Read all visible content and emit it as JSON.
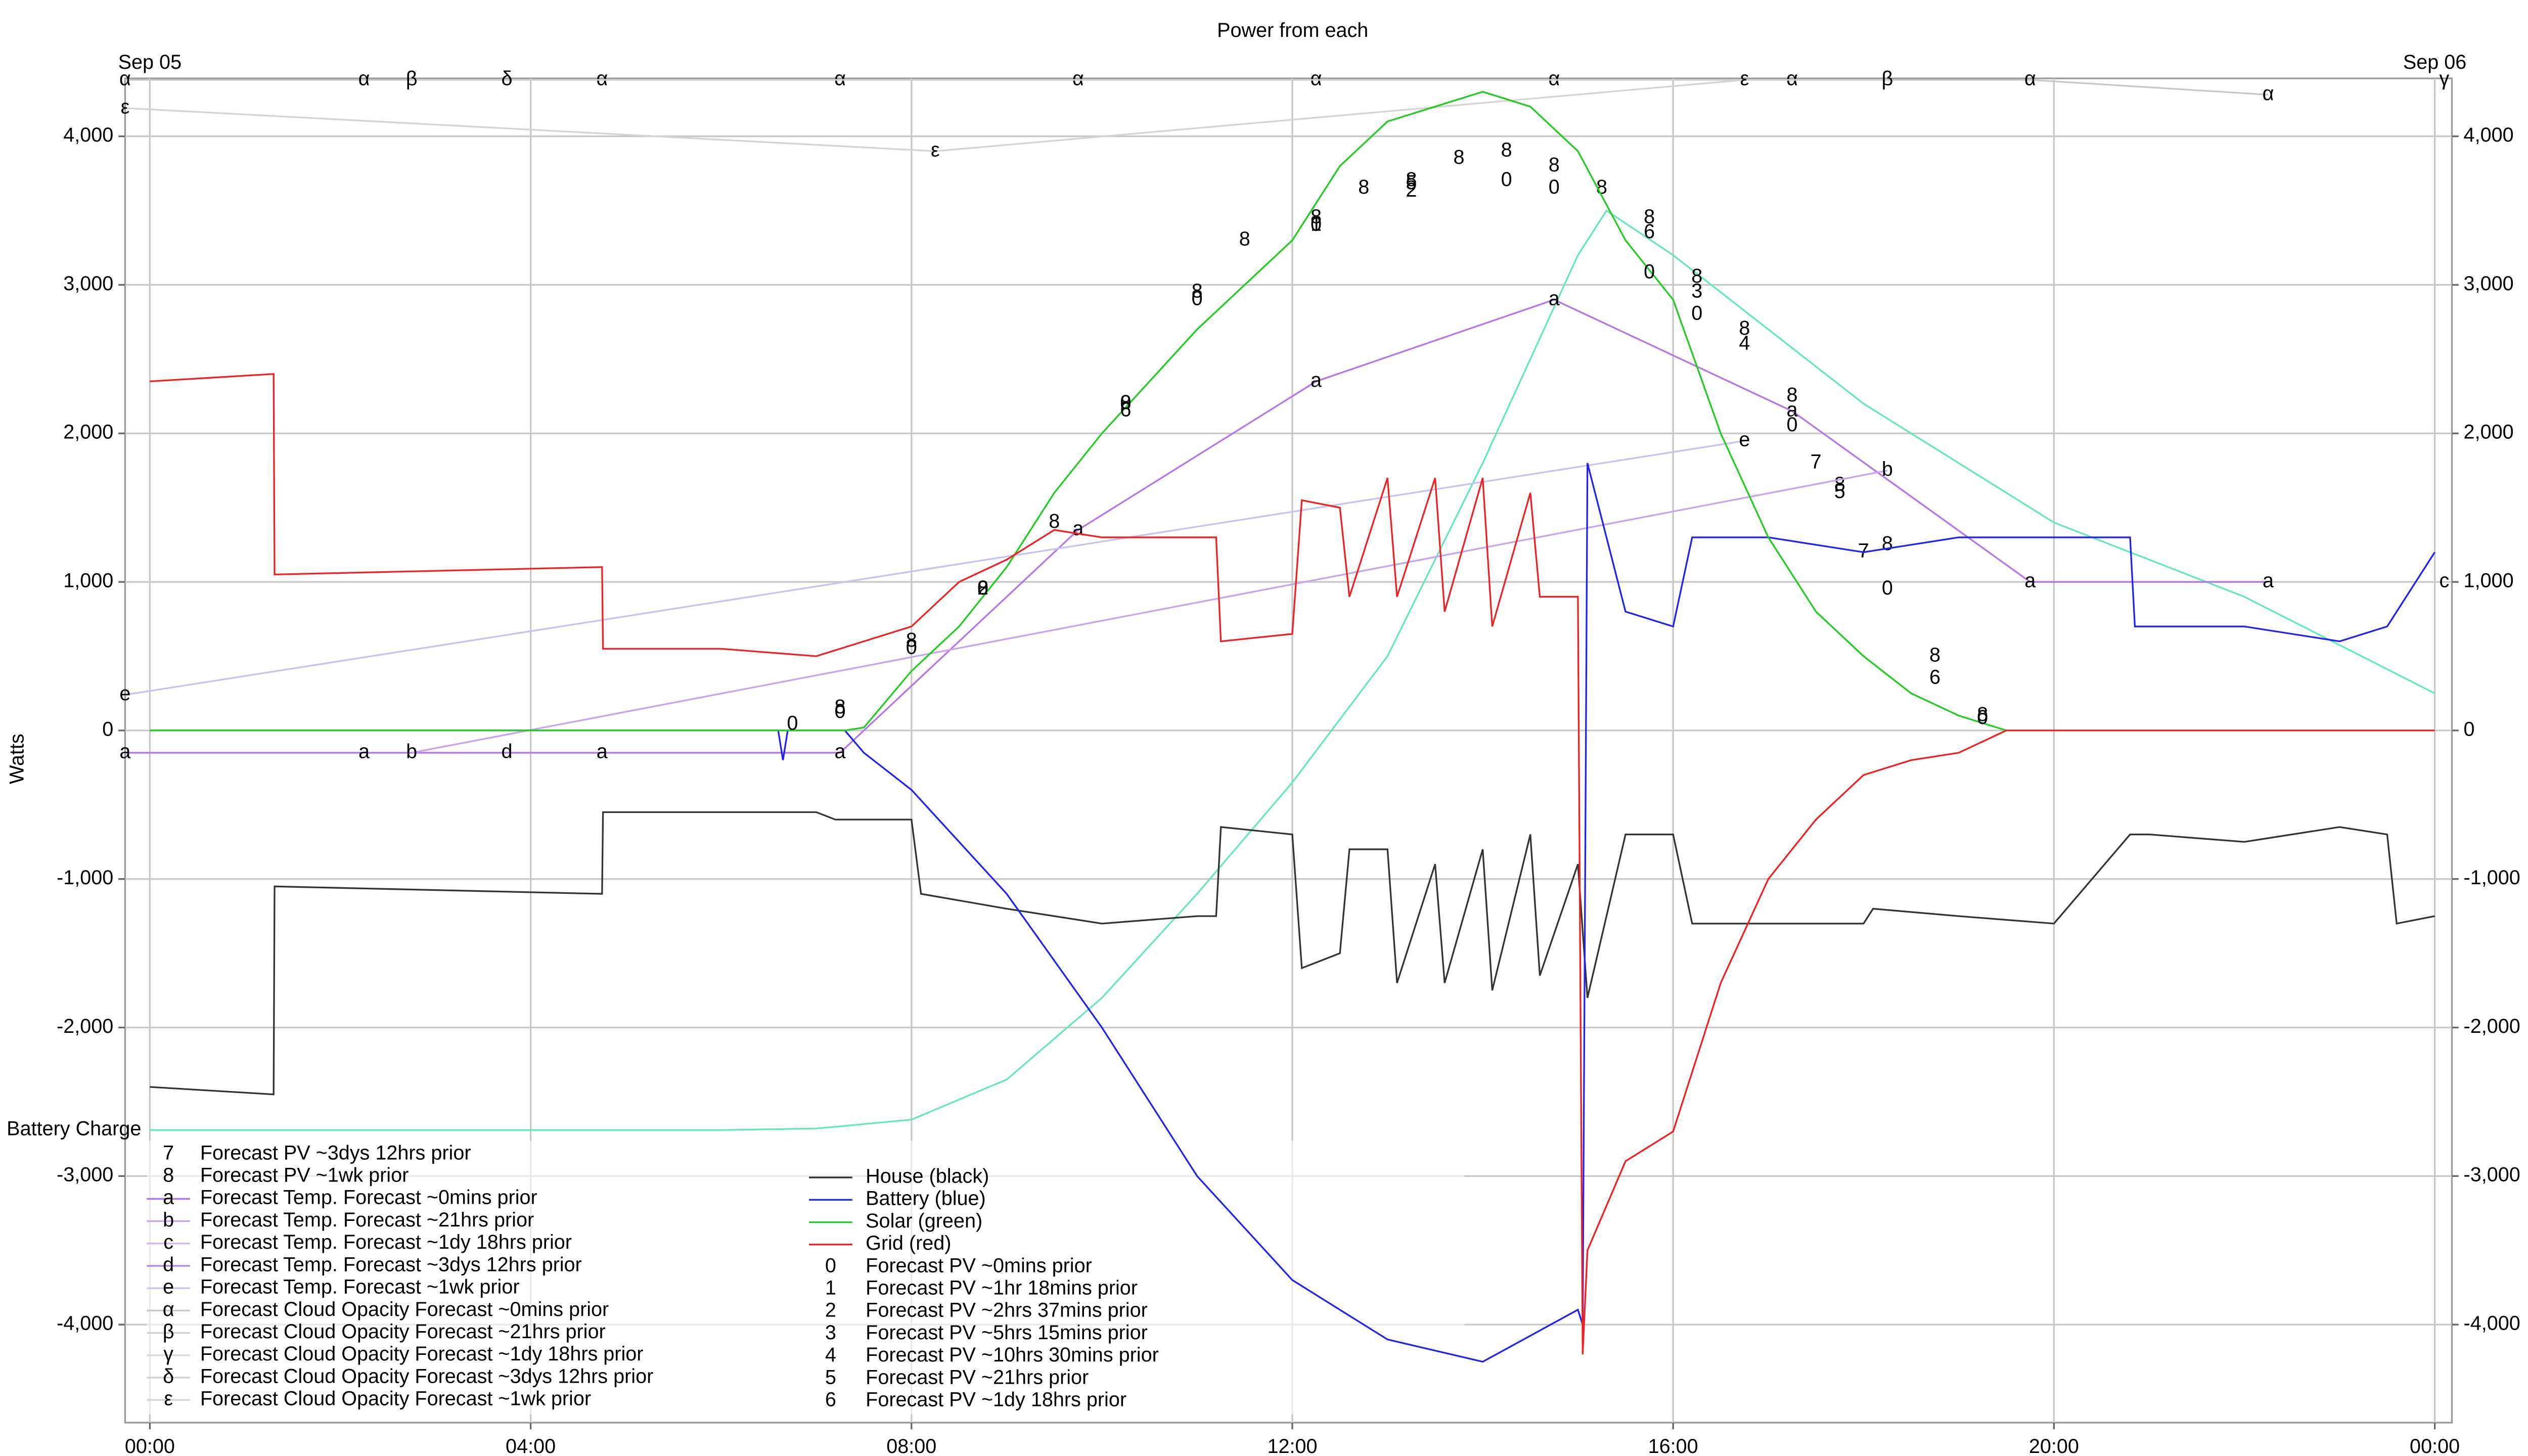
{
  "chart_data": {
    "type": "line",
    "title": "Power from each",
    "y_label": "Watts",
    "date_labels": [
      {
        "value": 0,
        "label": "Sep 05"
      },
      {
        "value": 24,
        "label": "Sep 06"
      }
    ],
    "xlim": [
      -0.26,
      24.18
    ],
    "xticks": [
      {
        "value": 0,
        "label": "00:00"
      },
      {
        "value": 4,
        "label": "04:00"
      },
      {
        "value": 8,
        "label": "08:00"
      },
      {
        "value": 12,
        "label": "12:00"
      },
      {
        "value": 16,
        "label": "16:00"
      },
      {
        "value": 20,
        "label": "20:00"
      },
      {
        "value": 24,
        "label": "00:00"
      }
    ],
    "ylim": [
      -4660,
      4390
    ],
    "yticks": [
      {
        "value": -4000,
        "label": "-4,000"
      },
      {
        "value": -3000,
        "label": "-3,000"
      },
      {
        "value": -2000,
        "label": "-2,000"
      },
      {
        "value": -1000,
        "label": "-1,000"
      },
      0,
      {
        "value": 1000,
        "label": "1,000"
      },
      {
        "value": 2000,
        "label": "2,000"
      },
      {
        "value": 3000,
        "label": "3,000"
      },
      {
        "value": 4000,
        "label": "4,000"
      }
    ],
    "grid": true,
    "battery_charge": {
      "name": "Battery Charge",
      "color": "#66e6c0",
      "x": [
        0,
        6,
        7,
        8,
        9,
        10,
        11,
        12,
        13,
        14,
        15,
        15.3,
        16,
        18,
        20,
        22,
        24
      ],
      "values": [
        -2690,
        -2690,
        -2680,
        -2620,
        -2350,
        -1800,
        -1100,
        -350,
        500,
        1800,
        3200,
        3500,
        3200,
        2200,
        1400,
        900,
        250
      ]
    },
    "series": [
      {
        "name": "Forecast PV ~3dys 12hrs prior",
        "symbol": "7",
        "color": "#000000",
        "show_line": false,
        "x": [
          17.5,
          18
        ],
        "values": [
          1800,
          1200
        ]
      },
      {
        "name": "Forecast PV ~1wk prior",
        "symbol": "8",
        "color": "#000000",
        "show_line": false,
        "x": [
          7.25,
          8,
          8.75,
          9.5,
          10.25,
          11,
          11.5,
          12.25,
          12.75,
          13.25,
          13.75,
          14.25,
          14.75,
          15.25,
          15.75,
          16.25,
          16.75,
          17.25,
          17.75,
          18.25,
          18.75,
          19.25
        ],
        "values": [
          150,
          600,
          950,
          1400,
          2200,
          2950,
          3300,
          3450,
          3650,
          3700,
          3850,
          3900,
          3800,
          3650,
          3450,
          3050,
          2700,
          2250,
          1650,
          1250,
          500,
          100
        ]
      },
      {
        "name": "Forecast Temp. Forecast ~0mins prior",
        "symbol": "a",
        "color": "#b377e8",
        "show_line": true,
        "x": [
          -0.26,
          2.25,
          4.75,
          7.25,
          9.75,
          12.25,
          14.75,
          17.25,
          19.75,
          22.25
        ],
        "values": [
          -150,
          -150,
          -150,
          -150,
          1350,
          2350,
          2900,
          2150,
          1000,
          1000
        ]
      },
      {
        "name": "Forecast Temp. Forecast ~21hrs prior",
        "symbol": "b",
        "color": "#c9a3f0",
        "show_line": true,
        "x": [
          2.75,
          18.25
        ],
        "values": [
          -150,
          1750
        ]
      },
      {
        "name": "Forecast Temp. Forecast ~1dy 18hrs prior",
        "symbol": "c",
        "color": "#d4b8f2",
        "show_line": true,
        "x": [
          24.1
        ],
        "values": [
          1000
        ]
      },
      {
        "name": "Forecast Temp. Forecast ~3dys 12hrs prior",
        "symbol": "d",
        "color": "#a98be0",
        "show_line": true,
        "x": [
          3.75
        ],
        "values": [
          -150
        ]
      },
      {
        "name": "Forecast Temp. Forecast ~1wk prior",
        "symbol": "e",
        "color": "#c4c4f2",
        "show_line": true,
        "x": [
          -0.26,
          16.75
        ],
        "values": [
          240,
          1950
        ]
      },
      {
        "name": "Forecast Cloud Opacity Forecast ~0mins prior",
        "symbol": "α",
        "color": "#c8c8c8",
        "show_line": true,
        "x": [
          -0.26,
          2.25,
          4.75,
          7.25,
          9.75,
          12.25,
          14.75,
          17.25,
          19.75,
          22.25
        ],
        "values": [
          4380,
          4380,
          4380,
          4380,
          4380,
          4380,
          4380,
          4380,
          4380,
          4280
        ]
      },
      {
        "name": "Forecast Cloud Opacity Forecast ~21hrs prior",
        "symbol": "β",
        "color": "#d0d0d0",
        "show_line": true,
        "x": [
          2.75,
          18.25
        ],
        "values": [
          4380,
          4380
        ]
      },
      {
        "name": "Forecast Cloud Opacity Forecast ~1dy 18hrs prior",
        "symbol": "γ",
        "color": "#d8d8d8",
        "show_line": true,
        "x": [
          24.1
        ],
        "values": [
          4380
        ]
      },
      {
        "name": "Forecast Cloud Opacity Forecast ~3dys 12hrs prior",
        "symbol": "δ",
        "color": "#d0d0d0",
        "show_line": true,
        "x": [
          3.75
        ],
        "values": [
          4380
        ]
      },
      {
        "name": "Forecast Cloud Opacity Forecast ~1wk prior",
        "symbol": "ε",
        "color": "#d4d4d4",
        "show_line": true,
        "x": [
          -0.26,
          8.25,
          16.75
        ],
        "values": [
          4190,
          3900,
          4380
        ]
      },
      {
        "name": "House (black)",
        "color": "#333333",
        "show_line": true,
        "x": [
          0,
          1.3,
          1.31,
          4.75,
          4.76,
          7,
          7.2,
          8,
          8.1,
          9,
          10,
          11,
          11.2,
          11.25,
          12,
          12.1,
          12.5,
          12.6,
          13,
          13.1,
          13.5,
          13.6,
          14,
          14.1,
          14.5,
          14.6,
          15,
          15.1,
          15.5,
          16,
          16.2,
          17,
          18,
          18.1,
          19,
          20,
          20.8,
          21,
          22,
          23,
          23.5,
          23.6,
          24
        ],
        "values": [
          -2400,
          -2450,
          -1050,
          -1100,
          -550,
          -550,
          -600,
          -600,
          -1100,
          -1200,
          -1300,
          -1250,
          -1250,
          -650,
          -700,
          -1600,
          -1500,
          -800,
          -800,
          -1700,
          -900,
          -1700,
          -800,
          -1750,
          -700,
          -1650,
          -900,
          -1800,
          -700,
          -700,
          -1300,
          -1300,
          -1300,
          -1200,
          -1250,
          -1300,
          -700,
          -700,
          -750,
          -650,
          -700,
          -1300,
          -1250
        ]
      },
      {
        "name": "Battery (blue)",
        "color": "#2222ee",
        "show_line": true,
        "x": [
          0,
          6.6,
          6.65,
          6.7,
          7.3,
          7.5,
          8,
          9,
          10,
          11,
          12,
          13,
          14,
          15,
          15.05,
          15.1,
          15.5,
          16,
          16.2,
          17,
          18,
          19,
          20,
          20.8,
          20.85,
          22,
          23,
          23.5,
          24
        ],
        "values": [
          0,
          0,
          -200,
          0,
          0,
          -150,
          -400,
          -1100,
          -2000,
          -3000,
          -3700,
          -4100,
          -4250,
          -3900,
          -4000,
          1800,
          800,
          700,
          1300,
          1300,
          1200,
          1300,
          1300,
          1300,
          700,
          700,
          600,
          700,
          1200
        ]
      },
      {
        "name": "Solar (green)",
        "color": "#22cc22",
        "show_line": true,
        "x": [
          0,
          7.3,
          7.5,
          8,
          8.5,
          9,
          9.5,
          10,
          11,
          12,
          12.5,
          13,
          13.5,
          14,
          14.5,
          15,
          15.5,
          16,
          16.5,
          17,
          17.5,
          18,
          18.5,
          19,
          19.5,
          24
        ],
        "values": [
          0,
          0,
          20,
          400,
          700,
          1100,
          1600,
          2000,
          2700,
          3300,
          3800,
          4100,
          4200,
          4300,
          4200,
          3900,
          3300,
          2900,
          2000,
          1300,
          800,
          500,
          250,
          100,
          0,
          0
        ]
      },
      {
        "name": "Grid (red)",
        "color": "#ee2222",
        "show_line": true,
        "x": [
          0,
          1.3,
          1.31,
          4.75,
          4.76,
          6,
          7,
          7.5,
          8,
          8.5,
          9,
          9.5,
          10,
          11,
          11.2,
          11.25,
          12,
          12.1,
          12.5,
          12.6,
          13,
          13.1,
          13.5,
          13.6,
          14,
          14.1,
          14.5,
          14.6,
          15,
          15.05,
          15.1,
          15.5,
          16,
          16.5,
          17,
          17.5,
          18,
          18.5,
          19,
          19.5,
          20,
          22,
          24
        ],
        "values": [
          2350,
          2400,
          1050,
          1100,
          550,
          550,
          500,
          600,
          700,
          1000,
          1150,
          1350,
          1300,
          1300,
          1300,
          600,
          650,
          1550,
          1500,
          900,
          1700,
          900,
          1700,
          800,
          1700,
          700,
          1600,
          900,
          900,
          -4200,
          -3500,
          -2900,
          -2700,
          -1700,
          -1000,
          -600,
          -300,
          -200,
          -150,
          0,
          0,
          0,
          0
        ]
      },
      {
        "name": "Forecast PV ~0mins prior",
        "symbol": "0",
        "color": "#000000",
        "show_line": false,
        "x": [
          6.75,
          7.25,
          8,
          8.75,
          10.25,
          11,
          12.25,
          14.25,
          14.75,
          15.75,
          16.25,
          17.25,
          18.25,
          19.25
        ],
        "values": [
          40,
          120,
          550,
          950,
          2200,
          2900,
          3400,
          3700,
          3650,
          3080,
          2800,
          2050,
          950,
          80
        ]
      },
      {
        "name": "Forecast PV ~1hr 18mins prior",
        "symbol": "1",
        "color": "#000000",
        "show_line": false,
        "x": [
          12.25
        ],
        "values": [
          3400
        ]
      },
      {
        "name": "Forecast PV ~2hrs 37mins prior",
        "symbol": "2",
        "color": "#000000",
        "show_line": false,
        "x": [
          8.75,
          13.25
        ],
        "values": [
          950,
          3630
        ]
      },
      {
        "name": "Forecast PV ~5hrs 15mins prior",
        "symbol": "3",
        "color": "#000000",
        "show_line": false,
        "x": [
          16.25
        ],
        "values": [
          2950
        ]
      },
      {
        "name": "Forecast PV ~10hrs 30mins prior",
        "symbol": "4",
        "color": "#000000",
        "show_line": false,
        "x": [
          16.75
        ],
        "values": [
          2600
        ]
      },
      {
        "name": "Forecast PV ~21hrs prior",
        "symbol": "5",
        "color": "#000000",
        "show_line": false,
        "x": [
          13.25,
          17.75
        ],
        "values": [
          3680,
          1600
        ]
      },
      {
        "name": "Forecast PV ~1dy 18hrs prior",
        "symbol": "6",
        "color": "#000000",
        "show_line": false,
        "x": [
          10.25,
          15.75,
          18.75
        ],
        "values": [
          2150,
          3350,
          350
        ]
      }
    ]
  }
}
